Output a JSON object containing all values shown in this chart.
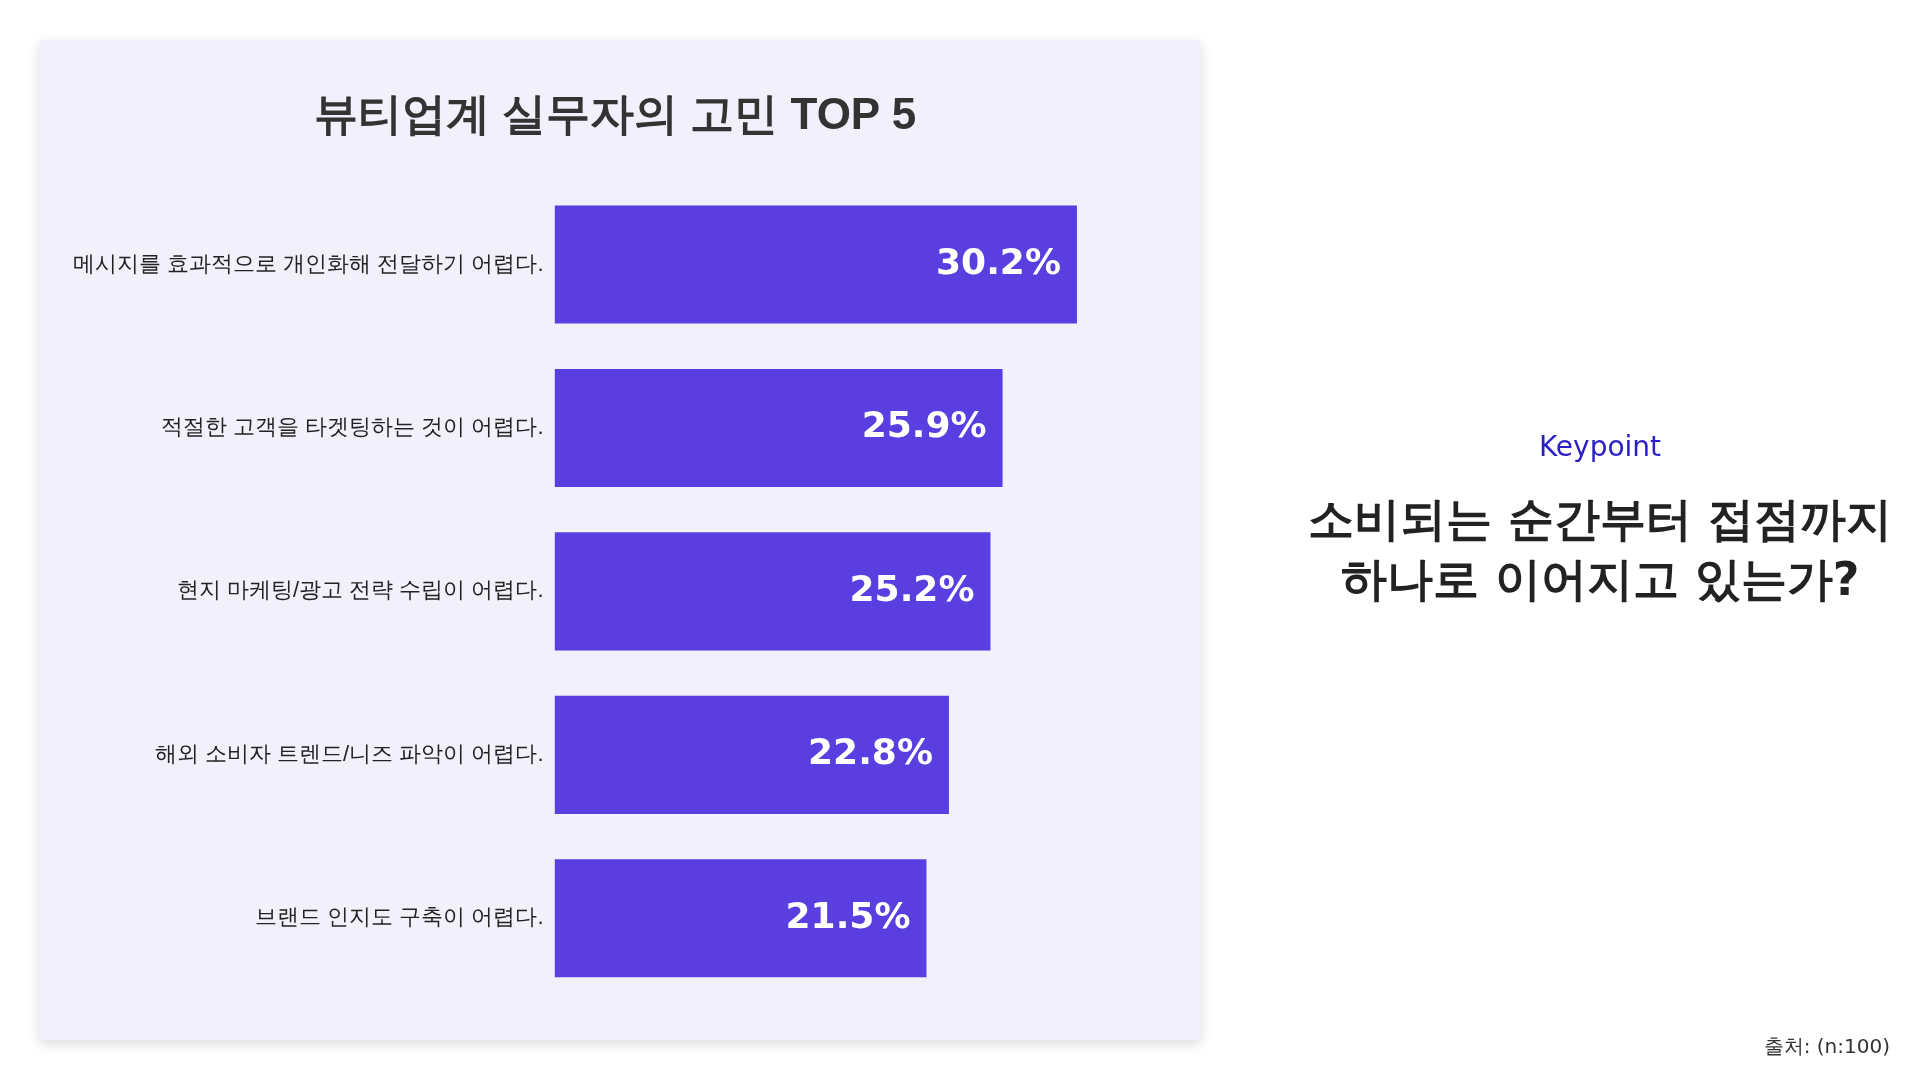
{
  "chart_data": {
    "type": "bar",
    "orientation": "horizontal",
    "title": "뷰티업계 실무자의 고민 TOP 5",
    "categories": [
      "메시지를 효과적으로 개인화해 전달하기 어렵다.",
      "적절한 고객을 타겟팅하는 것이 어렵다.",
      "현지 마케팅/광고 전략 수립이 어렵다.",
      "해외 소비자 트렌드/니즈 파악이 어렵다.",
      "브랜드 인지도 구축이 어렵다."
    ],
    "values": [
      30.2,
      25.9,
      25.2,
      22.8,
      21.5
    ],
    "value_labels": [
      "30.2%",
      "25.9%",
      "25.2%",
      "22.8%",
      "21.5%"
    ],
    "color": "#5a3ee0",
    "tick_labels": "y",
    "legend": false,
    "annotations": [
      "Keypoint",
      "소비되는 순간부터 접점까지 하나로 이어지고 있는가?",
      "출처: (n:100)"
    ]
  }
}
